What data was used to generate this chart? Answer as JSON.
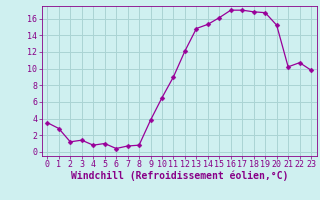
{
  "x": [
    0,
    1,
    2,
    3,
    4,
    5,
    6,
    7,
    8,
    9,
    10,
    11,
    12,
    13,
    14,
    15,
    16,
    17,
    18,
    19,
    20,
    21,
    22,
    23
  ],
  "y": [
    3.5,
    2.8,
    1.2,
    1.4,
    0.8,
    1.0,
    0.4,
    0.7,
    0.8,
    3.8,
    6.5,
    9.0,
    12.1,
    14.8,
    15.3,
    16.1,
    17.0,
    17.0,
    16.8,
    16.7,
    15.2,
    10.2,
    10.7,
    9.8
  ],
  "line_color": "#990099",
  "marker": "D",
  "marker_size": 2.5,
  "bg_color": "#cff0f0",
  "grid_color": "#aad4d4",
  "tick_label_color": "#880088",
  "xlabel": "Windchill (Refroidissement éolien,°C)",
  "xlabel_color": "#880088",
  "xlabel_fontsize": 7,
  "tick_fontsize": 6,
  "ylim": [
    -0.5,
    17.5
  ],
  "xlim": [
    -0.5,
    23.5
  ],
  "yticks": [
    0,
    2,
    4,
    6,
    8,
    10,
    12,
    14,
    16
  ],
  "xticks": [
    0,
    1,
    2,
    3,
    4,
    5,
    6,
    7,
    8,
    9,
    10,
    11,
    12,
    13,
    14,
    15,
    16,
    17,
    18,
    19,
    20,
    21,
    22,
    23
  ]
}
